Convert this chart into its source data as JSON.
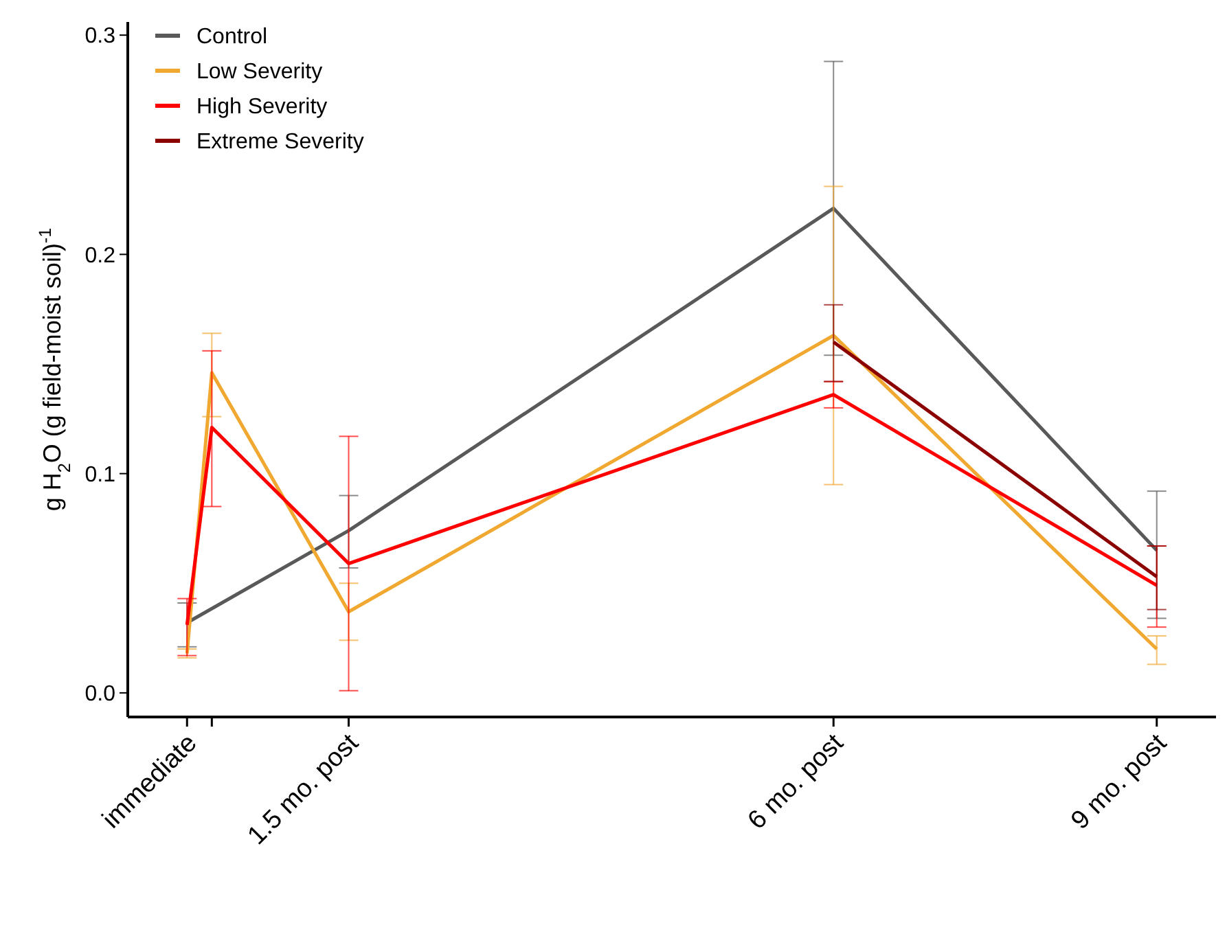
{
  "chart_data": {
    "type": "line",
    "ylabel": "g H$_{2}$O (g field-moist soil)$^{-1}$",
    "xlim": [
      -0.55,
      9.55
    ],
    "ylim": [
      -0.011,
      0.306
    ],
    "xticks": [
      {
        "value": 0,
        "label": "immediate"
      },
      {
        "value": 0.23,
        "label": null
      },
      {
        "value": 1.5,
        "label": "1.5 mo. post"
      },
      {
        "value": 6,
        "label": "6 mo. post"
      },
      {
        "value": 9,
        "label": "9 mo. post"
      }
    ],
    "yticks": [
      {
        "value": 0,
        "label": "0.0"
      },
      {
        "value": 0.1,
        "label": "0.1"
      },
      {
        "value": 0.2,
        "label": "0.2"
      },
      {
        "value": 0.3,
        "label": "0.3"
      }
    ],
    "grid": false,
    "legend": "top left",
    "marker": "none",
    "line_style": "solid",
    "series": [
      {
        "name": "Control",
        "color": "#595959",
        "x": [
          0,
          1.5,
          6,
          9
        ],
        "values": [
          0.032,
          0.074,
          0.221,
          0.065
        ],
        "errors": [
          [
            0.021,
            0.041
          ],
          [
            0.057,
            0.09
          ],
          [
            0.154,
            0.288
          ],
          [
            0.034,
            0.092
          ]
        ]
      },
      {
        "name": "Low Severity",
        "color": "#f0a830",
        "x": [
          0,
          0.23,
          1.5,
          6,
          9
        ],
        "values": [
          0.018,
          0.146,
          0.037,
          0.163,
          0.02
        ],
        "errors": [
          [
            0.016,
            0.02
          ],
          [
            0.126,
            0.164
          ],
          [
            0.024,
            0.05
          ],
          [
            0.095,
            0.231
          ],
          [
            0.013,
            0.026
          ]
        ]
      },
      {
        "name": "High Severity",
        "color": "#ff0000",
        "x": [
          0,
          0.23,
          1.5,
          6,
          9
        ],
        "values": [
          0.031,
          0.121,
          0.059,
          0.136,
          0.049
        ],
        "errors": [
          [
            0.017,
            0.043
          ],
          [
            0.085,
            0.156
          ],
          [
            0.001,
            0.117
          ],
          [
            0.13,
            0.142
          ],
          [
            0.03,
            0.067
          ]
        ]
      },
      {
        "name": "Extreme Severity",
        "color": "#8b0000",
        "x": [
          6,
          9
        ],
        "values": [
          0.16,
          0.053
        ],
        "errors": [
          [
            0.142,
            0.177
          ],
          [
            0.038,
            0.067
          ]
        ]
      }
    ]
  }
}
